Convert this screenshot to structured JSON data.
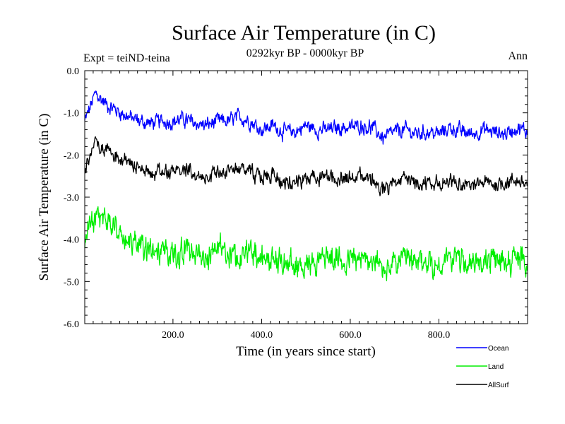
{
  "chart_data": {
    "type": "line",
    "title": "Surface Air Temperature (in C)",
    "subtitle": "0292kyr BP - 0000kyr BP",
    "experiment": "Expt = teiND-teina",
    "period": "Ann",
    "xlabel": "Time (in years since start)",
    "ylabel": "Surface Air Temperature (in C)",
    "xlim": [
      1,
      1000
    ],
    "ylim": [
      -6.0,
      0.0
    ],
    "x_ticks": [
      200,
      400,
      600,
      800
    ],
    "x_tick_labels": [
      "200.0",
      "400.0",
      "600.0",
      "800.0"
    ],
    "y_ticks": [
      0,
      -1,
      -2,
      -3,
      -4,
      -5,
      -6
    ],
    "y_tick_labels": [
      "0.0",
      "-1.0",
      "-2.0",
      "-3.0",
      "-4.0",
      "-5.0",
      "-6.0"
    ],
    "legend_position": "bottom-right",
    "series": [
      {
        "name": "Ocean",
        "color": "#0000ff",
        "x": [
          1,
          25,
          50,
          75,
          100,
          125,
          150,
          175,
          200,
          225,
          250,
          275,
          300,
          325,
          350,
          375,
          400,
          425,
          450,
          475,
          500,
          525,
          550,
          575,
          600,
          625,
          650,
          675,
          700,
          725,
          750,
          775,
          800,
          825,
          850,
          875,
          900,
          925,
          950,
          975,
          1000
        ],
        "values": [
          -1.2,
          -0.55,
          -0.8,
          -0.95,
          -1.1,
          -1.2,
          -1.25,
          -1.2,
          -1.2,
          -1.15,
          -1.25,
          -1.3,
          -1.2,
          -1.2,
          -1.1,
          -1.2,
          -1.4,
          -1.3,
          -1.45,
          -1.45,
          -1.3,
          -1.4,
          -1.4,
          -1.35,
          -1.35,
          -1.3,
          -1.35,
          -1.6,
          -1.45,
          -1.4,
          -1.5,
          -1.45,
          -1.5,
          -1.35,
          -1.45,
          -1.5,
          -1.4,
          -1.45,
          -1.5,
          -1.35,
          -1.45
        ]
      },
      {
        "name": "Land",
        "color": "#00ee00",
        "x": [
          1,
          25,
          50,
          75,
          100,
          125,
          150,
          175,
          200,
          225,
          250,
          275,
          300,
          325,
          350,
          375,
          400,
          425,
          450,
          475,
          500,
          525,
          550,
          575,
          600,
          625,
          650,
          675,
          700,
          725,
          750,
          775,
          800,
          825,
          850,
          875,
          900,
          925,
          950,
          975,
          1000
        ],
        "values": [
          -4.1,
          -3.3,
          -3.6,
          -3.8,
          -4.0,
          -4.2,
          -4.3,
          -4.25,
          -4.35,
          -4.3,
          -4.35,
          -4.4,
          -4.3,
          -4.35,
          -4.4,
          -4.3,
          -4.5,
          -4.45,
          -4.55,
          -4.65,
          -4.55,
          -4.5,
          -4.4,
          -4.5,
          -4.45,
          -4.5,
          -4.5,
          -4.75,
          -4.55,
          -4.5,
          -4.6,
          -4.55,
          -4.65,
          -4.4,
          -4.5,
          -4.6,
          -4.5,
          -4.55,
          -4.5,
          -4.45,
          -4.55
        ]
      },
      {
        "name": "AllSurf",
        "color": "#000000",
        "x": [
          1,
          25,
          50,
          75,
          100,
          125,
          150,
          175,
          200,
          225,
          250,
          275,
          300,
          325,
          350,
          375,
          400,
          425,
          450,
          475,
          500,
          525,
          550,
          575,
          600,
          625,
          650,
          675,
          700,
          725,
          750,
          775,
          800,
          825,
          850,
          875,
          900,
          925,
          950,
          975,
          1000
        ],
        "values": [
          -2.4,
          -1.65,
          -1.9,
          -2.1,
          -2.2,
          -2.35,
          -2.4,
          -2.35,
          -2.4,
          -2.35,
          -2.45,
          -2.5,
          -2.4,
          -2.4,
          -2.35,
          -2.4,
          -2.55,
          -2.5,
          -2.6,
          -2.65,
          -2.55,
          -2.55,
          -2.5,
          -2.55,
          -2.55,
          -2.5,
          -2.55,
          -2.85,
          -2.65,
          -2.6,
          -2.7,
          -2.65,
          -2.7,
          -2.6,
          -2.65,
          -2.75,
          -2.65,
          -2.7,
          -2.65,
          -2.6,
          -2.7
        ]
      }
    ]
  }
}
